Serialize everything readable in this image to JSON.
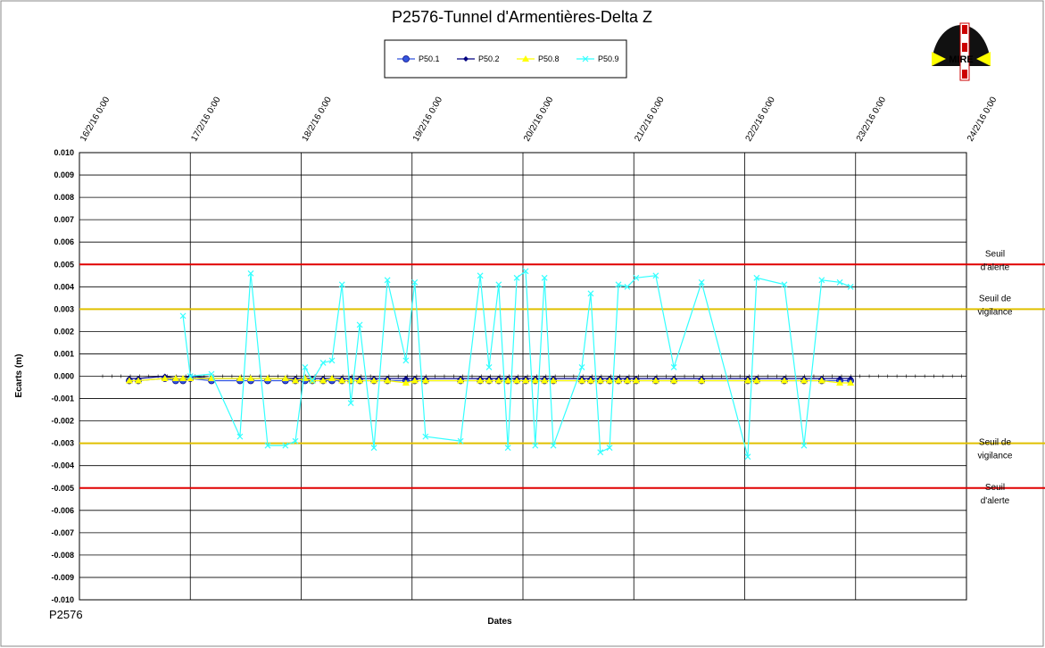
{
  "chart_data": {
    "type": "line",
    "title": "P2576-Tunnel  d'Armentières-Delta  Z",
    "footer": "P2576",
    "logo": "MIRE",
    "x_label": "Dates",
    "y_label": "Ecarts (m)",
    "xlim": [
      "2016-02-16T00:00",
      "2016-02-24T00:00"
    ],
    "xticks": [
      {
        "value": "2016-02-16T00:00",
        "label": "16/2/16 0:00"
      },
      {
        "value": "2016-02-17T00:00",
        "label": "17/2/16 0:00"
      },
      {
        "value": "2016-02-18T00:00",
        "label": "18/2/16 0:00"
      },
      {
        "value": "2016-02-19T00:00",
        "label": "19/2/16 0:00"
      },
      {
        "value": "2016-02-20T00:00",
        "label": "20/2/16 0:00"
      },
      {
        "value": "2016-02-21T00:00",
        "label": "21/2/16 0:00"
      },
      {
        "value": "2016-02-22T00:00",
        "label": "22/2/16 0:00"
      },
      {
        "value": "2016-02-23T00:00",
        "label": "23/2/16 0:00"
      },
      {
        "value": "2016-02-24T00:00",
        "label": "24/2/16 0:00"
      }
    ],
    "ylim": [
      -0.01,
      0.01
    ],
    "yticks": [
      {
        "value": 0.01,
        "label": "0.010"
      },
      0.009,
      0.008,
      0.007,
      0.006,
      0.005,
      0.004,
      0.003,
      0.002,
      0.001,
      {
        "value": 0,
        "label": "0.000"
      },
      -0.001,
      -0.002,
      -0.003,
      -0.004,
      -0.005,
      -0.006,
      -0.007,
      -0.008,
      -0.009,
      {
        "value": -0.01,
        "label": "-0.010"
      }
    ],
    "grid": true,
    "thresholds": [
      {
        "value": 0.005,
        "label": [
          "Seuil",
          "d'alerte"
        ],
        "color": "#e00000"
      },
      {
        "value": 0.003,
        "label": [
          "Seuil de",
          "vigilance"
        ],
        "color": "#e0c000"
      },
      {
        "value": -0.003,
        "label": [
          "Seuil de",
          "vigilance"
        ],
        "color": "#e0c000"
      },
      {
        "value": -0.005,
        "label": [
          "Seuil",
          "d'alerte"
        ],
        "color": "#e00000"
      }
    ],
    "x": [
      "2016-02-16T10:48",
      "2016-02-16T12:45",
      "2016-02-16T18:30",
      "2016-02-16T20:50",
      "2016-02-16T22:25",
      "2016-02-17T00:00",
      "2016-02-17T04:35",
      "2016-02-17T10:45",
      "2016-02-17T13:05",
      "2016-02-17T16:45",
      "2016-02-17T20:35",
      "2016-02-17T22:45",
      "2016-02-18T00:50",
      "2016-02-18T02:25",
      "2016-02-18T04:45",
      "2016-02-18T06:40",
      "2016-02-18T08:50",
      "2016-02-18T10:45",
      "2016-02-18T12:40",
      "2016-02-18T15:45",
      "2016-02-18T18:40",
      "2016-02-18T22:40",
      "2016-02-19T00:35",
      "2016-02-19T02:55",
      "2016-02-19T10:30",
      "2016-02-19T14:45",
      "2016-02-19T16:40",
      "2016-02-19T18:45",
      "2016-02-19T20:45",
      "2016-02-19T22:40",
      "2016-02-20T00:35",
      "2016-02-20T02:40",
      "2016-02-20T04:40",
      "2016-02-20T06:35",
      "2016-02-20T12:45",
      "2016-02-20T14:40",
      "2016-02-20T16:45",
      "2016-02-20T18:45",
      "2016-02-20T20:40",
      "2016-02-20T22:35",
      "2016-02-21T00:30",
      "2016-02-21T04:45",
      "2016-02-21T08:40",
      "2016-02-21T14:40",
      "2016-02-22T00:40",
      "2016-02-22T02:35",
      "2016-02-22T08:35",
      "2016-02-22T12:50",
      "2016-02-22T16:40",
      "2016-02-22T20:35",
      "2016-02-22T22:55"
    ],
    "series": [
      {
        "name": "P50.1",
        "color": "#3355dd",
        "marker": "circle",
        "values": [
          -0.0002,
          -0.0002,
          -0.0001,
          -0.0002,
          -0.0002,
          -0.0001,
          -0.0002,
          -0.0002,
          -0.0002,
          -0.0002,
          -0.0002,
          -0.0002,
          -0.0002,
          -0.0002,
          -0.0002,
          -0.0002,
          -0.0002,
          -0.0002,
          -0.0002,
          -0.0002,
          -0.0002,
          -0.0002,
          -0.0002,
          -0.0002,
          -0.0002,
          -0.0002,
          -0.0002,
          -0.0002,
          -0.0002,
          -0.0002,
          -0.0002,
          -0.0002,
          -0.0002,
          -0.0002,
          -0.0002,
          -0.0002,
          -0.0002,
          -0.0002,
          -0.0002,
          -0.0002,
          -0.0002,
          -0.0002,
          -0.0002,
          -0.0002,
          -0.0002,
          -0.0002,
          -0.0002,
          -0.0002,
          -0.0002,
          -0.0002,
          -0.0002
        ]
      },
      {
        "name": "P50.2",
        "color": "#000080",
        "marker": "diamond",
        "values": [
          -0.0001,
          -0.0001,
          0.0,
          -0.0001,
          -0.0001,
          0.0,
          -0.0001,
          -0.0001,
          -0.0001,
          -0.0001,
          -0.0001,
          -0.0001,
          -0.0001,
          -0.0001,
          -0.0001,
          -0.0001,
          -0.0001,
          -0.0001,
          -0.0001,
          -0.0001,
          -0.0001,
          -0.0001,
          -0.0001,
          -0.0001,
          -0.0001,
          -0.0001,
          -0.0001,
          -0.0001,
          -0.0001,
          -0.0001,
          -0.0001,
          -0.0001,
          -0.0001,
          -0.0001,
          -0.0001,
          -0.0001,
          -0.0001,
          -0.0001,
          -0.0001,
          -0.0001,
          -0.0001,
          -0.0001,
          -0.0001,
          -0.0001,
          -0.0001,
          -0.0001,
          -0.0001,
          -0.0001,
          -0.0001,
          -0.0001,
          -0.0001
        ]
      },
      {
        "name": "P50.8",
        "color": "#ffff00",
        "marker": "triangle",
        "values": [
          -0.0002,
          -0.0002,
          -0.0001,
          -0.0001,
          -0.0001,
          -0.0001,
          -0.0001,
          -0.0001,
          -0.0001,
          -0.0001,
          -0.0001,
          -0.0002,
          -0.0001,
          -0.0002,
          -0.0002,
          -0.0001,
          -0.0002,
          -0.0002,
          -0.0002,
          -0.0002,
          -0.0002,
          -0.0003,
          -0.0002,
          -0.0002,
          -0.0002,
          -0.0002,
          -0.0002,
          -0.0002,
          -0.0002,
          -0.0002,
          -0.0002,
          -0.0002,
          -0.0002,
          -0.0002,
          -0.0002,
          -0.0002,
          -0.0002,
          -0.0002,
          -0.0002,
          -0.0002,
          -0.0002,
          -0.0002,
          -0.0002,
          -0.0002,
          -0.0002,
          -0.0002,
          -0.0002,
          -0.0002,
          -0.0002,
          -0.0003,
          -0.0003
        ]
      },
      {
        "name": "P50.9",
        "color": "#33ffff",
        "marker": "x",
        "values": [
          null,
          null,
          null,
          null,
          0.0027,
          0.0,
          0.0001,
          -0.0027,
          0.0046,
          -0.0031,
          -0.0031,
          -0.0029,
          0.0004,
          -0.0002,
          0.0006,
          0.0007,
          0.0041,
          -0.0012,
          0.0023,
          -0.0032,
          0.0043,
          0.0007,
          0.0042,
          -0.0027,
          -0.0029,
          0.0045,
          0.0004,
          0.0041,
          -0.0032,
          0.0044,
          0.0047,
          -0.0031,
          0.0044,
          -0.0031,
          0.0004,
          0.0037,
          -0.0034,
          -0.0032,
          0.0041,
          0.004,
          0.0044,
          0.0045,
          0.0004,
          0.0042,
          -0.0036,
          0.0044,
          0.0041,
          -0.0031,
          0.0043,
          0.0042,
          0.004
        ]
      }
    ]
  }
}
